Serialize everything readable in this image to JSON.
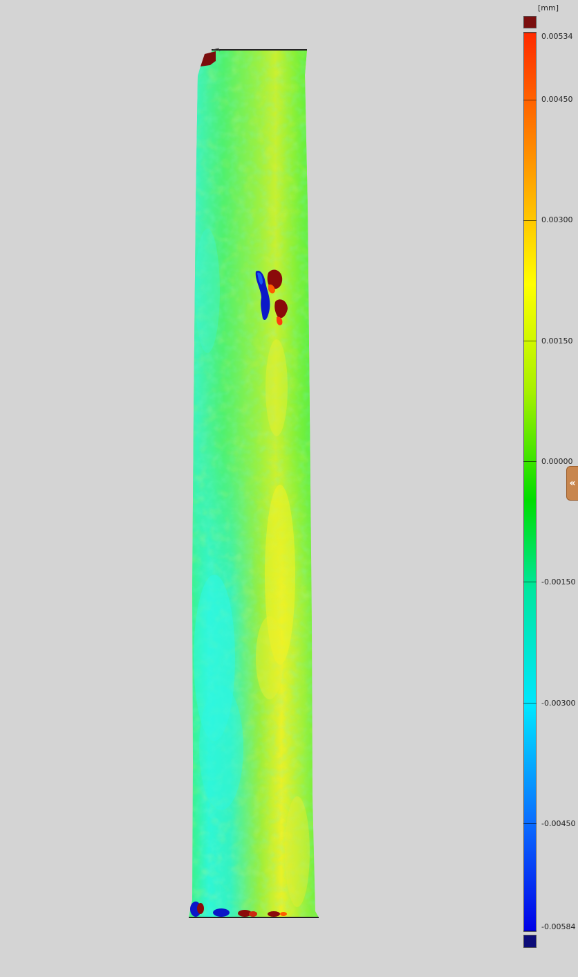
{
  "legend": {
    "unit": "[mm]",
    "over_color": "#7a0f0f",
    "under_color": "#0c0c78",
    "scale_min": -0.00584,
    "scale_max": 0.00534,
    "labels": [
      "0.00534",
      "0.00450",
      "0.00300",
      "0.00150",
      "0.00000",
      "-0.00150",
      "-0.00300",
      "-0.00450",
      "-0.00584"
    ],
    "colors": {
      "max": "#ff2a00",
      "orange": "#ff9a00",
      "yellow": "#ffff00",
      "lime": "#a6f000",
      "green": "#00dd00",
      "teal": "#00e6a0",
      "cyan": "#00e6ff",
      "blue": "#0a6cff",
      "min": "#0000e6"
    }
  },
  "panel_toggle": {
    "label": "«",
    "icon": "double-chevron-left-icon",
    "color": "#c8864e"
  },
  "part": {
    "description_colors": {
      "base": "#44ee44",
      "cyan_band": "#33ffdd",
      "yellow_band": "#d8f030",
      "defect_red": "#8b0000",
      "defect_blue": "#0a16c8"
    }
  }
}
